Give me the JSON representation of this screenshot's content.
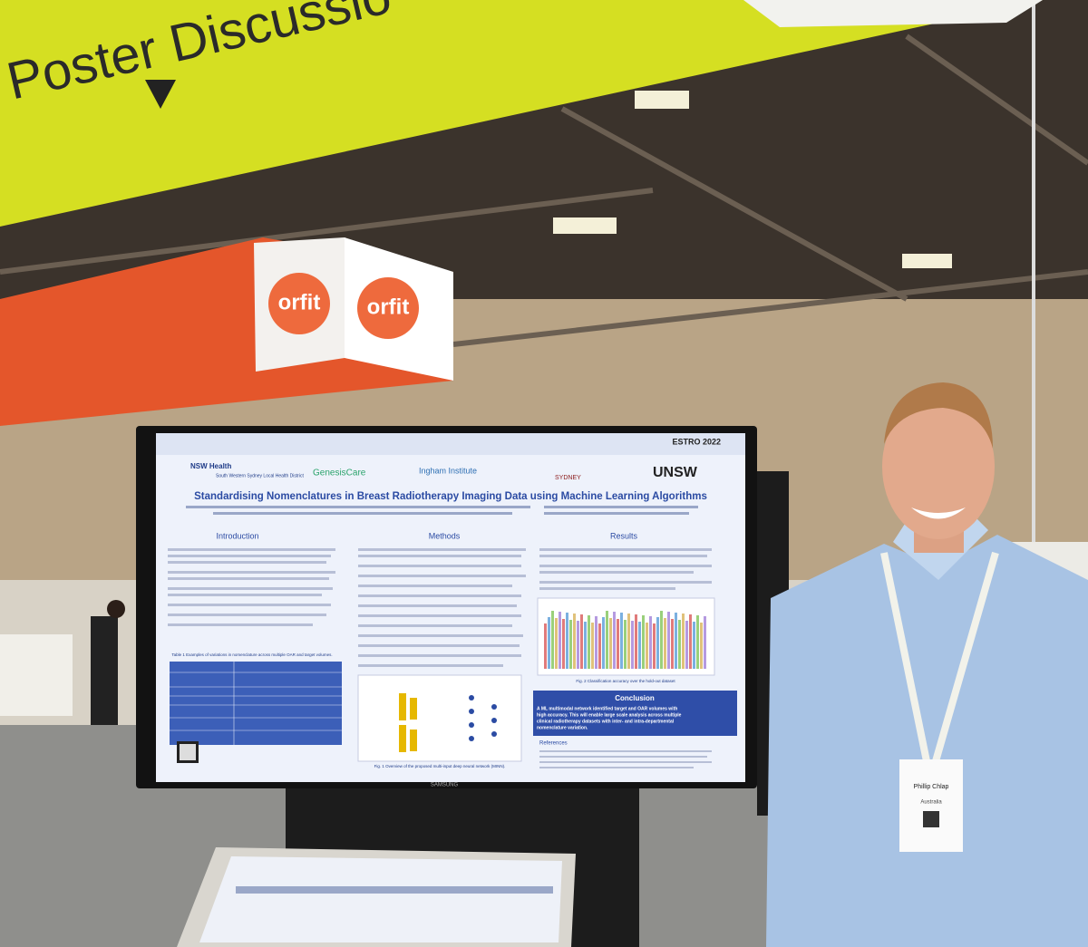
{
  "banner": {
    "text": "Poster Discussio"
  },
  "booth": {
    "logos": [
      "orfit",
      "orfit"
    ]
  },
  "poster": {
    "event": "ESTRO 2022",
    "logos": [
      "NSW Health",
      "South Western Sydney Local Health District",
      "GenesisCare",
      "Ingham Institute",
      "SYDNEY",
      "UNSW"
    ],
    "title": "Standardising Nomenclatures in Breast Radiotherapy Imaging Data using Machine Learning Algorithms",
    "sections": [
      "Introduction",
      "Methods",
      "Results"
    ],
    "table_caption": "Table 1 Examples of variations in nomenclature across multiple OAR and target volumes.",
    "fig2_caption": "Fig. 2 Classification accuracy over the hold-out dataset",
    "fig1_caption": "Fig. 1 Overview of the proposed multi-input deep neural network (MINN).",
    "conclusion": {
      "heading": "Conclusion",
      "text": [
        "A ML multimodal network identified target and OAR volumes with",
        "high accuracy. This will enable large scale analysis across multiple",
        "clinical radiotherapy datasets with inter- and intra-departmental",
        "nomenclature variation."
      ]
    },
    "references": "References"
  },
  "monitor": {
    "brand": "SAMSUNG"
  },
  "badge": {
    "name": "Phillip Chlap",
    "country": "Australia"
  }
}
